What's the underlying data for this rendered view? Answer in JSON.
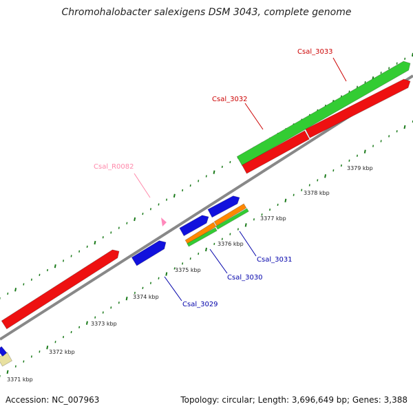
{
  "title": "Chromohalobacter salexigens DSM 3043, complete genome",
  "footer": {
    "accession": "Accession: NC_007963",
    "summary": "Topology: circular; Length: 3,696,649 bp; Genes: 3,388"
  },
  "colors": {
    "backbone": "#888888",
    "tick": "#1a7a1a",
    "red_gene": "#ee1111",
    "green_gene": "#33cc33",
    "blue_gene": "#1111dd",
    "orange_gene": "#ff8800",
    "yellow_gene": "#e8e0a0",
    "rna_gene": "#ff88bb",
    "label_red": "#cc0000",
    "label_blue": "#0000aa",
    "label_pink": "#ff88aa"
  },
  "kbp_labels": [
    "3371 kbp",
    "3372 kbp",
    "3373 kbp",
    "3374 kbp",
    "3375 kbp",
    "3376 kbp",
    "3377 kbp",
    "3378 kbp",
    "3379 kbp"
  ],
  "gene_labels": [
    {
      "name": "Csal_3033",
      "color": "label_red"
    },
    {
      "name": "Csal_3032",
      "color": "label_red"
    },
    {
      "name": "Csal_R0082",
      "color": "label_pink"
    },
    {
      "name": "Csal_3031",
      "color": "label_blue"
    },
    {
      "name": "Csal_3030",
      "color": "label_blue"
    },
    {
      "name": "Csal_3029",
      "color": "label_blue"
    }
  ]
}
